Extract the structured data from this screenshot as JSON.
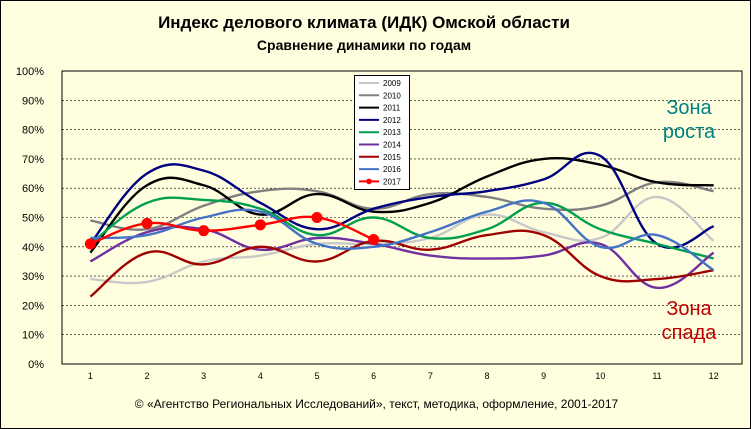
{
  "chart_data": {
    "type": "line",
    "title": "Индекс делового климата (ИДК) Омской области",
    "subtitle": "Сравнение динамики  по годам",
    "categories": [
      "1",
      "2",
      "3",
      "4",
      "5",
      "6",
      "7",
      "8",
      "9",
      "10",
      "11",
      "12"
    ],
    "ylim": [
      0,
      100
    ],
    "yticks": [
      "0%",
      "10%",
      "20%",
      "30%",
      "40%",
      "50%",
      "60%",
      "70%",
      "80%",
      "90%",
      "100%"
    ],
    "grid": true,
    "legend_position": "top-center",
    "series": [
      {
        "name": "2009",
        "color": "#c8c8c8",
        "values": [
          29,
          28,
          35,
          37,
          41,
          41,
          43,
          51,
          45,
          43,
          57,
          42
        ]
      },
      {
        "name": "2010",
        "color": "#808080",
        "values": [
          49,
          46,
          54,
          59,
          59,
          53,
          58,
          57,
          53,
          54,
          62,
          59
        ]
      },
      {
        "name": "2011",
        "color": "#000000",
        "values": [
          38,
          61,
          61,
          51,
          58,
          52,
          55,
          64,
          70,
          68,
          62,
          61
        ]
      },
      {
        "name": "2012",
        "color": "#000080",
        "values": [
          41,
          65,
          66,
          55,
          46,
          53,
          57,
          59,
          63,
          71,
          41,
          47
        ]
      },
      {
        "name": "2013",
        "color": "#00a050",
        "values": [
          41,
          55,
          56,
          53,
          44,
          50,
          43,
          46,
          55,
          46,
          41,
          36
        ]
      },
      {
        "name": "2014",
        "color": "#7030a0",
        "values": [
          35,
          45,
          46,
          39,
          43,
          41,
          37,
          36,
          37,
          41,
          26,
          38
        ]
      },
      {
        "name": "2015",
        "color": "#a00000",
        "values": [
          23,
          38,
          34,
          40,
          35,
          42,
          39,
          44,
          44,
          30,
          29,
          32
        ]
      },
      {
        "name": "2016",
        "color": "#4472c4",
        "values": [
          43,
          44,
          50,
          52,
          41,
          40,
          45,
          52,
          55,
          40,
          44,
          32
        ]
      },
      {
        "name": "2017",
        "color": "#ff0000",
        "values": [
          41,
          48,
          45.5,
          47.5,
          50,
          42.5,
          null,
          null,
          null,
          null,
          null,
          null
        ]
      }
    ]
  },
  "annotations": {
    "growth": "Зона роста",
    "growth_color": "#008080",
    "decline": "Зона спада",
    "decline_color": "#c00000"
  },
  "footer": {
    "copyright": "© «Агентство Региональных  Исследований»,  текст, методика, оформление,  2001-2017"
  }
}
